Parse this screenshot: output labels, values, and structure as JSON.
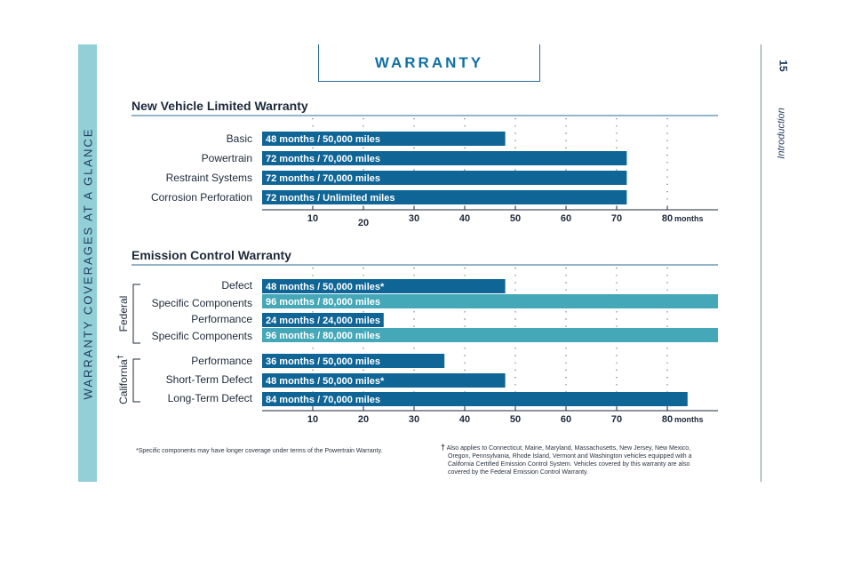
{
  "sidebar_text": "WARRANTY COVERAGES AT A GLANCE",
  "page_number": "15",
  "section_label": "Introduction",
  "page_title": "WARRANTY",
  "colors": {
    "dark_bar": "#0e6596",
    "light_bar": "#44a8b9",
    "sidebar": "#93cfd6",
    "title": "#1170a3"
  },
  "chart_data": [
    {
      "type": "bar",
      "orientation": "horizontal",
      "title": "New Vehicle Limited Warranty",
      "xlim": [
        0,
        80
      ],
      "x_ticks": [
        "10",
        "20",
        "30",
        "40",
        "50",
        "60",
        "70",
        "80"
      ],
      "x_unit": "months",
      "grid": "dotted vertical",
      "rows": [
        {
          "label": "Basic",
          "months": 48,
          "text": "48 months / 50,000 miles",
          "color": "dark"
        },
        {
          "label": "Powertrain",
          "months": 72,
          "text": "72 months / 70,000 miles",
          "color": "dark"
        },
        {
          "label": "Restraint Systems",
          "months": 72,
          "text": "72 months / 70,000 miles",
          "color": "dark"
        },
        {
          "label": "Corrosion Perforation",
          "months": 72,
          "text": "72 months / Unlimited miles",
          "color": "dark"
        }
      ]
    },
    {
      "type": "bar",
      "orientation": "horizontal",
      "title": "Emission Control Warranty",
      "xlim": [
        0,
        80
      ],
      "x_ticks": [
        "10",
        "20",
        "30",
        "40",
        "50",
        "60",
        "70",
        "80"
      ],
      "x_unit": "months",
      "grid": "dotted vertical",
      "groups": [
        {
          "name": "Federal",
          "rows": [
            0,
            1,
            2,
            3
          ]
        },
        {
          "name": "California",
          "superscript": "†",
          "rows": [
            4,
            5,
            6
          ]
        }
      ],
      "rows": [
        {
          "label": "Defect",
          "months": 48,
          "text": "48 months / 50,000 miles*",
          "color": "dark"
        },
        {
          "label": "Specific Components",
          "months": 96,
          "text": "96 months / 80,000 miles",
          "color": "light"
        },
        {
          "label": "Performance",
          "months": 24,
          "text": "24 months / 24,000 miles",
          "color": "dark"
        },
        {
          "label": "Specific Components",
          "months": 96,
          "text": "96 months / 80,000 miles",
          "color": "light"
        },
        {
          "label": "Performance",
          "months": 36,
          "text": "36 months / 50,000 miles",
          "color": "dark"
        },
        {
          "label": "Short-Term Defect",
          "months": 48,
          "text": "48 months / 50,000 miles*",
          "color": "dark"
        },
        {
          "label": "Long-Term Defect",
          "months": 84,
          "text": "84 months / 70,000 miles",
          "color": "dark"
        }
      ]
    }
  ],
  "footnotes": {
    "left": "*Specific components may have longer coverage under terms of the Powertrain Warranty.",
    "right_mark": "†",
    "right": [
      "Also applies to Connecticut, Maine, Maryland, Massachusetts, New Jersey, New Mexico,",
      "Oregon, Pennsylvania, Rhode Island, Vermont and Washington vehicles equipped with a",
      "California Certified Emission Control System. Vehicles covered by this warranty are also",
      "covered by the Federal Emission Control Warranty."
    ]
  }
}
